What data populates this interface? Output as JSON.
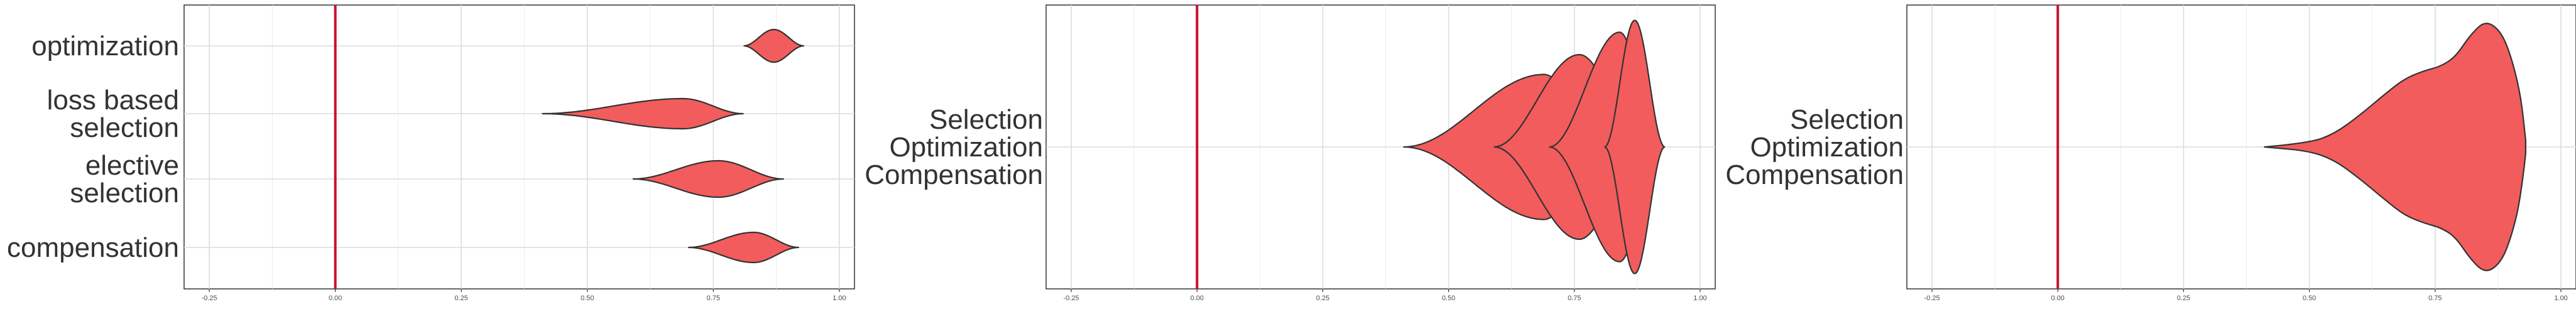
{
  "colors": {
    "fill": "#f25c5c",
    "outline": "#333333",
    "reference_line": "#c8102e",
    "grid": "#dcdcdc"
  },
  "chart_data": [
    {
      "type": "violin",
      "orientation": "horizontal",
      "title": "",
      "xlabel": "",
      "ylabel": "",
      "xlim": [
        -0.3,
        1.03
      ],
      "x_ticks": [
        "-0.25",
        "0.00",
        "0.25",
        "0.50",
        "0.75",
        "1.00"
      ],
      "reference_line_x": 0,
      "grid": true,
      "categories": [
        {
          "label": [
            "optimization"
          ],
          "min": 0.81,
          "max": 0.93,
          "peak": 0.87,
          "max_halfwidth": 0.52
        },
        {
          "label": [
            "loss based",
            "selection"
          ],
          "min": 0.41,
          "max": 0.81,
          "peak": 0.69,
          "max_halfwidth": 0.48
        },
        {
          "label": [
            "elective",
            "selection"
          ],
          "min": 0.59,
          "max": 0.89,
          "peak": 0.76,
          "max_halfwidth": 0.58
        },
        {
          "label": [
            "compensation"
          ],
          "min": 0.7,
          "max": 0.92,
          "peak": 0.83,
          "max_halfwidth": 0.48
        }
      ]
    },
    {
      "type": "violin",
      "orientation": "horizontal",
      "title": "",
      "xlabel": "",
      "ylabel": "",
      "xlim": [
        -0.3,
        1.03
      ],
      "x_ticks": [
        "-0.25",
        "0.00",
        "0.25",
        "0.50",
        "0.75",
        "1.00"
      ],
      "reference_line_x": 0,
      "grid": true,
      "category_label": [
        "Selection",
        "Optimization",
        "Compensation"
      ],
      "overlaid_series": [
        {
          "min": 0.41,
          "max": 0.81,
          "peak": 0.69,
          "max_halfwidth": 0.55
        },
        {
          "min": 0.59,
          "max": 0.89,
          "peak": 0.76,
          "max_halfwidth": 0.7
        },
        {
          "min": 0.7,
          "max": 0.92,
          "peak": 0.84,
          "max_halfwidth": 0.87
        },
        {
          "min": 0.81,
          "max": 0.93,
          "peak": 0.87,
          "max_halfwidth": 0.96
        }
      ]
    },
    {
      "type": "violin",
      "orientation": "horizontal",
      "title": "",
      "xlabel": "",
      "ylabel": "",
      "xlim": [
        -0.3,
        1.03
      ],
      "x_ticks": [
        "-0.25",
        "0.00",
        "0.25",
        "0.50",
        "0.75",
        "1.00"
      ],
      "reference_line_x": 0,
      "grid": true,
      "category_label": [
        "Selection",
        "Optimization",
        "Compensation"
      ],
      "combined_shape": [
        [
          0.41,
          0.0
        ],
        [
          0.5,
          0.03
        ],
        [
          0.55,
          0.1
        ],
        [
          0.6,
          0.24
        ],
        [
          0.65,
          0.4
        ],
        [
          0.69,
          0.52
        ],
        [
          0.73,
          0.58
        ],
        [
          0.76,
          0.61
        ],
        [
          0.79,
          0.68
        ],
        [
          0.82,
          0.85
        ],
        [
          0.85,
          0.96
        ],
        [
          0.88,
          0.88
        ],
        [
          0.9,
          0.7
        ],
        [
          0.92,
          0.4
        ],
        [
          0.93,
          0.05
        ]
      ]
    }
  ]
}
